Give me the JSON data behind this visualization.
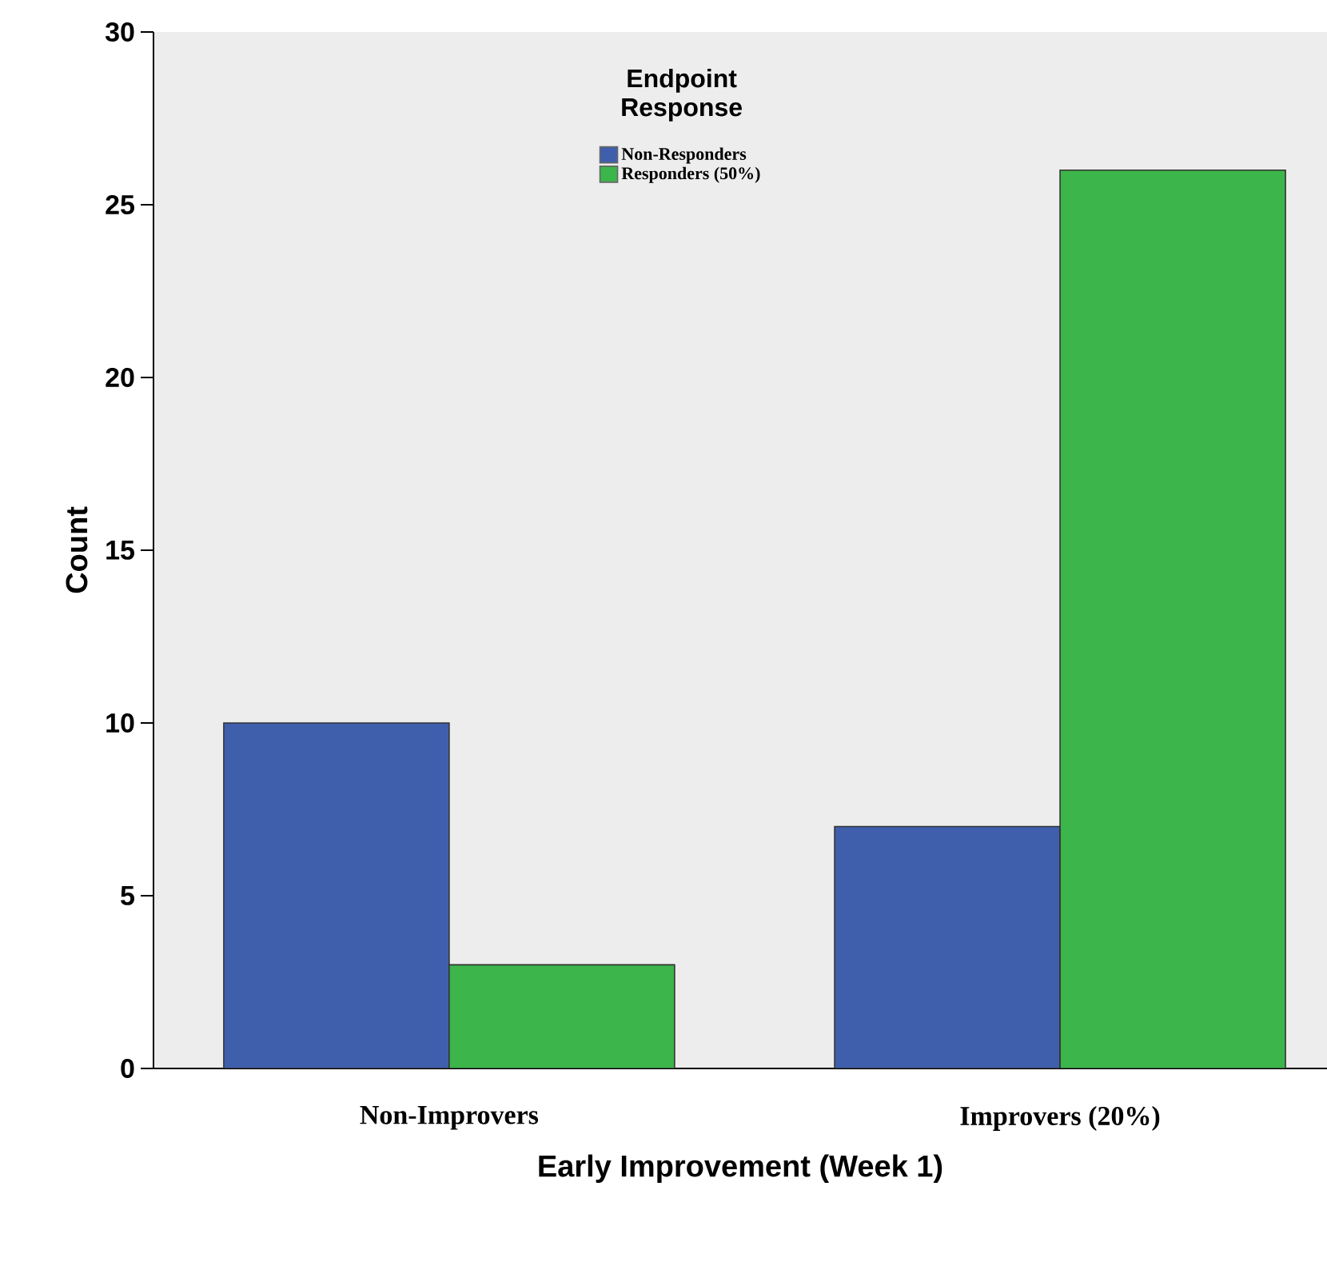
{
  "chart_data": {
    "type": "bar",
    "xlabel": "Early Improvement (Week 1)",
    "ylabel": "Count",
    "legend_title": "Endpoint Response",
    "categories": [
      "Non-Improvers",
      "Improvers (20%)"
    ],
    "series": [
      {
        "name": "Non-Responders",
        "color": "#3f5fad",
        "values": [
          10,
          7
        ]
      },
      {
        "name": "Responders (50%)",
        "color": "#3cb54a",
        "values": [
          3,
          26
        ]
      }
    ],
    "ylim": [
      0,
      30
    ],
    "yticks": [
      0,
      5,
      10,
      15,
      20,
      25,
      30
    ],
    "grid": false,
    "legend": "top"
  }
}
